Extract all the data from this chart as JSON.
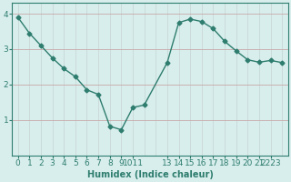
{
  "x": [
    0,
    1,
    2,
    3,
    4,
    5,
    6,
    7,
    8,
    9,
    10,
    11,
    13,
    14,
    15,
    16,
    17,
    18,
    19,
    20,
    21,
    22,
    23
  ],
  "y": [
    3.9,
    3.45,
    3.1,
    2.75,
    2.45,
    2.22,
    1.85,
    1.72,
    0.82,
    0.72,
    1.35,
    1.42,
    2.62,
    3.75,
    3.85,
    3.78,
    3.58,
    3.22,
    2.95,
    2.7,
    2.63,
    2.68,
    2.62
  ],
  "line_color": "#2e7d6e",
  "marker": "D",
  "marker_size": 2.5,
  "bg_color": "#d8eeed",
  "grid_color_v": "#c8d8d6",
  "grid_color_h": "#c8a8a8",
  "xlabel": "Humidex (Indice chaleur)",
  "ylim": [
    0,
    4.3
  ],
  "xlim": [
    -0.5,
    23.5
  ],
  "yticks": [
    1,
    2,
    3,
    4
  ],
  "xtick_positions": [
    0,
    1,
    2,
    3,
    4,
    5,
    6,
    7,
    8,
    9,
    10,
    13,
    14,
    15,
    16,
    17,
    18,
    19,
    20,
    21,
    22
  ],
  "xtick_labels": [
    "0",
    "1",
    "2",
    "3",
    "4",
    "5",
    "6",
    "7",
    "8",
    "9",
    "1011",
    "13",
    "14",
    "15",
    "16",
    "17",
    "18",
    "19",
    "20",
    "21",
    "2223"
  ],
  "all_x_grid": [
    0,
    1,
    2,
    3,
    4,
    5,
    6,
    7,
    8,
    9,
    10,
    11,
    12,
    13,
    14,
    15,
    16,
    17,
    18,
    19,
    20,
    21,
    22,
    23
  ],
  "xlabel_fontsize": 7,
  "tick_fontsize": 6.5
}
